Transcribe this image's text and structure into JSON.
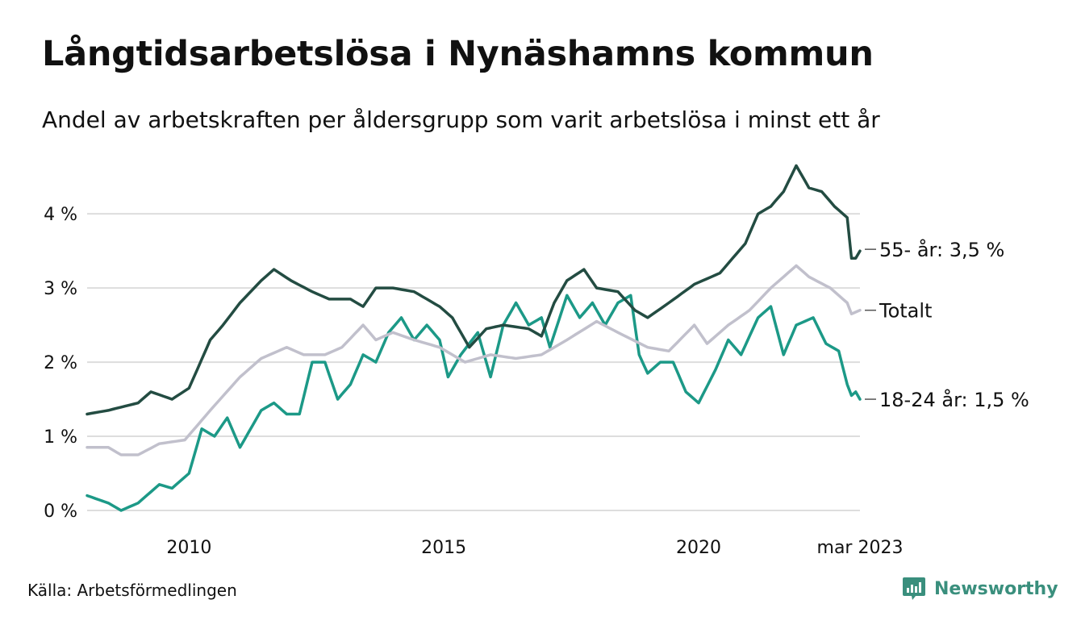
{
  "header": {
    "title": "Långtidsarbetslösa i Nynäshamns kommun",
    "subtitle": "Andel av arbetskraften per åldersgrupp som varit arbetslösa i minst ett år"
  },
  "footer": {
    "source": "Källa: Arbetsförmedlingen",
    "brand": "Newsworthy"
  },
  "colors": {
    "age55": "#234c42",
    "total": "#c1c0cc",
    "age1824": "#1c9987",
    "grid": "#dddddd",
    "brand": "#3a8f7d"
  },
  "chart_data": {
    "type": "line",
    "x_start": "2008-01",
    "x_end": "2023-03",
    "frequency": "monthly",
    "ylim": [
      0,
      4.6
    ],
    "yticks": [
      {
        "value": 0,
        "label": "0 %"
      },
      {
        "value": 1,
        "label": "1 %"
      },
      {
        "value": 2,
        "label": "2 %"
      },
      {
        "value": 3,
        "label": "3 %"
      },
      {
        "value": 4,
        "label": "4 %"
      }
    ],
    "xticks": [
      {
        "value": "2010-01",
        "label": "2010"
      },
      {
        "value": "2015-01",
        "label": "2015"
      },
      {
        "value": "2020-01",
        "label": "2020"
      },
      {
        "value": "2023-03",
        "label": "mar 2023"
      }
    ],
    "grid": "horizontal",
    "series": [
      {
        "key": "age1824",
        "name": "18-24 år",
        "label": "18-24 år: 1,5 %",
        "anchors": [
          [
            "2008-01",
            0.2
          ],
          [
            "2008-06",
            0.1
          ],
          [
            "2008-09",
            0.0
          ],
          [
            "2009-01",
            0.1
          ],
          [
            "2009-06",
            0.35
          ],
          [
            "2009-09",
            0.3
          ],
          [
            "2010-01",
            0.5
          ],
          [
            "2010-04",
            1.1
          ],
          [
            "2010-07",
            1.0
          ],
          [
            "2010-10",
            1.25
          ],
          [
            "2011-01",
            0.85
          ],
          [
            "2011-06",
            1.35
          ],
          [
            "2011-09",
            1.45
          ],
          [
            "2011-12",
            1.3
          ],
          [
            "2012-03",
            1.3
          ],
          [
            "2012-06",
            2.0
          ],
          [
            "2012-09",
            2.0
          ],
          [
            "2012-12",
            1.5
          ],
          [
            "2013-03",
            1.7
          ],
          [
            "2013-06",
            2.1
          ],
          [
            "2013-09",
            2.0
          ],
          [
            "2013-12",
            2.4
          ],
          [
            "2014-03",
            2.6
          ],
          [
            "2014-06",
            2.3
          ],
          [
            "2014-09",
            2.5
          ],
          [
            "2014-12",
            2.3
          ],
          [
            "2015-02",
            1.8
          ],
          [
            "2015-05",
            2.1
          ],
          [
            "2015-09",
            2.4
          ],
          [
            "2015-12",
            1.8
          ],
          [
            "2016-03",
            2.5
          ],
          [
            "2016-06",
            2.8
          ],
          [
            "2016-09",
            2.5
          ],
          [
            "2016-12",
            2.6
          ],
          [
            "2017-02",
            2.2
          ],
          [
            "2017-06",
            2.9
          ],
          [
            "2017-09",
            2.6
          ],
          [
            "2017-12",
            2.8
          ],
          [
            "2018-03",
            2.5
          ],
          [
            "2018-06",
            2.8
          ],
          [
            "2018-09",
            2.9
          ],
          [
            "2018-11",
            2.1
          ],
          [
            "2019-01",
            1.85
          ],
          [
            "2019-04",
            2.0
          ],
          [
            "2019-07",
            2.0
          ],
          [
            "2019-10",
            1.6
          ],
          [
            "2020-01",
            1.45
          ],
          [
            "2020-05",
            1.9
          ],
          [
            "2020-08",
            2.3
          ],
          [
            "2020-11",
            2.1
          ],
          [
            "2021-03",
            2.6
          ],
          [
            "2021-06",
            2.75
          ],
          [
            "2021-09",
            2.1
          ],
          [
            "2021-12",
            2.5
          ],
          [
            "2022-04",
            2.6
          ],
          [
            "2022-07",
            2.25
          ],
          [
            "2022-10",
            2.15
          ],
          [
            "2022-12",
            1.7
          ],
          [
            "2023-01",
            1.55
          ],
          [
            "2023-02",
            1.6
          ],
          [
            "2023-03",
            1.5
          ]
        ]
      },
      {
        "key": "total",
        "name": "Totalt",
        "label": "Totalt",
        "anchors": [
          [
            "2008-01",
            0.85
          ],
          [
            "2008-06",
            0.85
          ],
          [
            "2008-09",
            0.75
          ],
          [
            "2009-01",
            0.75
          ],
          [
            "2009-06",
            0.9
          ],
          [
            "2009-12",
            0.95
          ],
          [
            "2010-06",
            1.35
          ],
          [
            "2011-01",
            1.8
          ],
          [
            "2011-06",
            2.05
          ],
          [
            "2011-12",
            2.2
          ],
          [
            "2012-04",
            2.1
          ],
          [
            "2012-09",
            2.1
          ],
          [
            "2013-01",
            2.2
          ],
          [
            "2013-06",
            2.5
          ],
          [
            "2013-09",
            2.3
          ],
          [
            "2014-01",
            2.4
          ],
          [
            "2014-06",
            2.3
          ],
          [
            "2014-12",
            2.2
          ],
          [
            "2015-06",
            2.0
          ],
          [
            "2015-12",
            2.1
          ],
          [
            "2016-06",
            2.05
          ],
          [
            "2016-12",
            2.1
          ],
          [
            "2017-06",
            2.3
          ],
          [
            "2018-01",
            2.55
          ],
          [
            "2018-06",
            2.4
          ],
          [
            "2019-01",
            2.2
          ],
          [
            "2019-06",
            2.15
          ],
          [
            "2019-12",
            2.5
          ],
          [
            "2020-03",
            2.25
          ],
          [
            "2020-08",
            2.5
          ],
          [
            "2021-01",
            2.7
          ],
          [
            "2021-06",
            3.0
          ],
          [
            "2021-12",
            3.3
          ],
          [
            "2022-03",
            3.15
          ],
          [
            "2022-08",
            3.0
          ],
          [
            "2022-12",
            2.8
          ],
          [
            "2023-01",
            2.65
          ],
          [
            "2023-03",
            2.7
          ]
        ]
      },
      {
        "key": "age55",
        "name": "55- år",
        "label": "55- år: 3,5 %",
        "anchors": [
          [
            "2008-01",
            1.3
          ],
          [
            "2008-06",
            1.35
          ],
          [
            "2009-01",
            1.45
          ],
          [
            "2009-04",
            1.6
          ],
          [
            "2009-09",
            1.5
          ],
          [
            "2010-01",
            1.65
          ],
          [
            "2010-06",
            2.3
          ],
          [
            "2010-09",
            2.5
          ],
          [
            "2011-01",
            2.8
          ],
          [
            "2011-06",
            3.1
          ],
          [
            "2011-09",
            3.25
          ],
          [
            "2012-01",
            3.1
          ],
          [
            "2012-06",
            2.95
          ],
          [
            "2012-10",
            2.85
          ],
          [
            "2013-03",
            2.85
          ],
          [
            "2013-06",
            2.75
          ],
          [
            "2013-09",
            3.0
          ],
          [
            "2014-01",
            3.0
          ],
          [
            "2014-06",
            2.95
          ],
          [
            "2014-12",
            2.75
          ],
          [
            "2015-03",
            2.6
          ],
          [
            "2015-07",
            2.2
          ],
          [
            "2015-11",
            2.45
          ],
          [
            "2016-03",
            2.5
          ],
          [
            "2016-09",
            2.45
          ],
          [
            "2016-12",
            2.35
          ],
          [
            "2017-03",
            2.8
          ],
          [
            "2017-06",
            3.1
          ],
          [
            "2017-10",
            3.25
          ],
          [
            "2018-01",
            3.0
          ],
          [
            "2018-06",
            2.95
          ],
          [
            "2018-10",
            2.7
          ],
          [
            "2019-01",
            2.6
          ],
          [
            "2019-06",
            2.8
          ],
          [
            "2019-12",
            3.05
          ],
          [
            "2020-06",
            3.2
          ],
          [
            "2020-12",
            3.6
          ],
          [
            "2021-03",
            4.0
          ],
          [
            "2021-06",
            4.1
          ],
          [
            "2021-09",
            4.3
          ],
          [
            "2021-12",
            4.65
          ],
          [
            "2022-03",
            4.35
          ],
          [
            "2022-06",
            4.3
          ],
          [
            "2022-09",
            4.1
          ],
          [
            "2022-12",
            3.95
          ],
          [
            "2023-01",
            3.4
          ],
          [
            "2023-02",
            3.4
          ],
          [
            "2023-03",
            3.5
          ]
        ]
      }
    ]
  }
}
